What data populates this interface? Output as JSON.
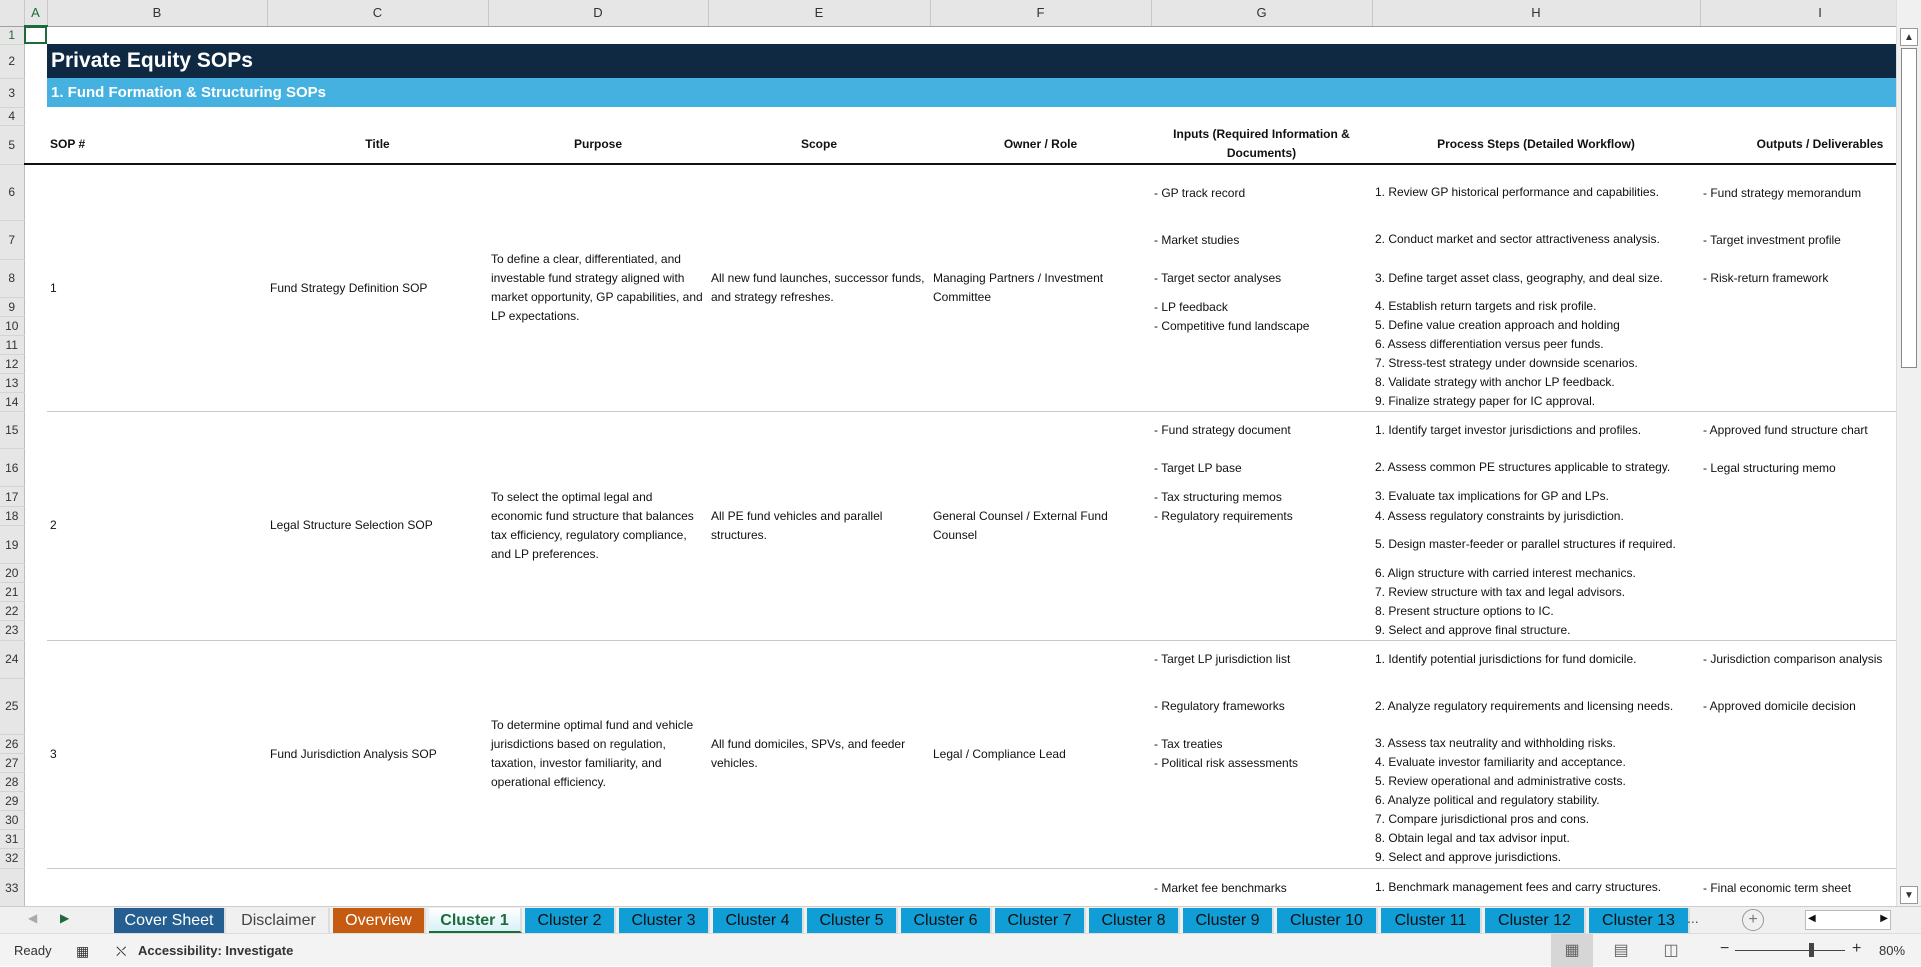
{
  "sheet": {
    "columns": [
      "A",
      "B",
      "C",
      "D",
      "E",
      "F",
      "G",
      "H",
      "I"
    ],
    "selected_cell": "A1",
    "title": "Private Equity SOPs",
    "section": "1. Fund Formation & Structuring SOPs",
    "headers": [
      "SOP #",
      "Title",
      "Purpose",
      "Scope",
      "Owner / Role",
      "Inputs (Required Information & Documents)",
      "Process Steps (Detailed Workflow)",
      "Outputs / Deliverables"
    ]
  },
  "sops": [
    {
      "number": "1",
      "title": "Fund Strategy Definition SOP",
      "purpose": "To define a clear, differentiated, and investable fund strategy aligned with market opportunity, GP capabilities, and LP expectations.",
      "scope": "All new fund launches, successor funds, and strategy refreshes.",
      "owner": "Managing Partners / Investment Committee",
      "rows": [
        {
          "input": "- GP track record",
          "step": "1. Review GP historical performance and capabilities.",
          "output": "- Fund strategy memorandum"
        },
        {
          "input": "- Market studies",
          "step": "2. Conduct market and sector attractiveness analysis.",
          "output": "- Target investment profile"
        },
        {
          "input": "- Target sector analyses",
          "step": "3. Define target asset class, geography, and deal size.",
          "output": "- Risk-return framework"
        },
        {
          "input": "- LP feedback",
          "step": "4. Establish return targets and risk profile.",
          "output": ""
        },
        {
          "input": "- Competitive fund landscape",
          "step": "5. Define value creation approach and holding",
          "output": ""
        },
        {
          "input": "",
          "step": "6. Assess differentiation versus peer funds.",
          "output": ""
        },
        {
          "input": "",
          "step": "7. Stress-test strategy under downside scenarios.",
          "output": ""
        },
        {
          "input": "",
          "step": "8. Validate strategy with anchor LP feedback.",
          "output": ""
        },
        {
          "input": "",
          "step": "9. Finalize strategy paper for IC approval.",
          "output": ""
        }
      ]
    },
    {
      "number": "2",
      "title": "Legal Structure Selection SOP",
      "purpose": "To select the optimal legal and economic fund structure that balances tax efficiency, regulatory compliance, and LP preferences.",
      "scope": "All PE fund vehicles and parallel structures.",
      "owner": "General Counsel / External Fund Counsel",
      "rows": [
        {
          "input": "- Fund strategy document",
          "step": "1. Identify target investor jurisdictions and profiles.",
          "output": "- Approved fund structure chart"
        },
        {
          "input": "- Target LP base",
          "step": "2. Assess common PE structures applicable to strategy.",
          "output": "- Legal structuring memo"
        },
        {
          "input": "- Tax structuring memos",
          "step": "3. Evaluate tax implications for GP and LPs.",
          "output": ""
        },
        {
          "input": "- Regulatory requirements",
          "step": "4. Assess regulatory constraints by jurisdiction.",
          "output": ""
        },
        {
          "input": "",
          "step": "5. Design master-feeder or parallel structures if required.",
          "output": ""
        },
        {
          "input": "",
          "step": "6. Align structure with carried interest mechanics.",
          "output": ""
        },
        {
          "input": "",
          "step": "7. Review structure with tax and legal advisors.",
          "output": ""
        },
        {
          "input": "",
          "step": "8. Present structure options to IC.",
          "output": ""
        },
        {
          "input": "",
          "step": "9. Select and approve final structure.",
          "output": ""
        }
      ]
    },
    {
      "number": "3",
      "title": "Fund Jurisdiction Analysis SOP",
      "purpose": "To determine optimal fund and vehicle jurisdictions based on regulation, taxation, investor familiarity, and operational efficiency.",
      "scope": "All fund domiciles, SPVs, and feeder vehicles.",
      "owner": "Legal / Compliance Lead",
      "rows": [
        {
          "input": "- Target LP jurisdiction list",
          "step": "1. Identify potential jurisdictions for fund domicile.",
          "output": "- Jurisdiction comparison analysis"
        },
        {
          "input": "- Regulatory frameworks",
          "step": "2. Analyze regulatory requirements and licensing needs.",
          "output": "- Approved domicile decision"
        },
        {
          "input": "- Tax treaties",
          "step": "3. Assess tax neutrality and withholding risks.",
          "output": ""
        },
        {
          "input": "- Political risk assessments",
          "step": "4. Evaluate investor familiarity and acceptance.",
          "output": ""
        },
        {
          "input": "",
          "step": "5. Review operational and administrative costs.",
          "output": ""
        },
        {
          "input": "",
          "step": "6. Analyze political and regulatory stability.",
          "output": ""
        },
        {
          "input": "",
          "step": "7. Compare jurisdictional pros and cons.",
          "output": ""
        },
        {
          "input": "",
          "step": "8. Obtain legal and tax advisor input.",
          "output": ""
        },
        {
          "input": "",
          "step": "9. Select and approve jurisdictions.",
          "output": ""
        }
      ]
    },
    {
      "number": "",
      "title": "",
      "purpose": "",
      "scope": "",
      "owner": "",
      "rows": [
        {
          "input": "- Market fee benchmarks",
          "step": "1. Benchmark management fees and carry structures.",
          "output": "- Final economic term sheet"
        }
      ]
    }
  ],
  "tabs": [
    {
      "label": "Cover Sheet",
      "color": "#255e91"
    },
    {
      "label": "Disclaimer",
      "color": "#f0f0f0"
    },
    {
      "label": "Overview",
      "color": "#c55a11"
    },
    {
      "label": "Cluster 1",
      "color": "#119dd5",
      "active": true
    },
    {
      "label": "Cluster 2",
      "color": "#119dd5"
    },
    {
      "label": "Cluster 3",
      "color": "#119dd5"
    },
    {
      "label": "Cluster 4",
      "color": "#119dd5"
    },
    {
      "label": "Cluster 5",
      "color": "#119dd5"
    },
    {
      "label": "Cluster 6",
      "color": "#119dd5"
    },
    {
      "label": "Cluster 7",
      "color": "#119dd5"
    },
    {
      "label": "Cluster 8",
      "color": "#119dd5"
    },
    {
      "label": "Cluster 9",
      "color": "#119dd5"
    },
    {
      "label": "Cluster 10",
      "color": "#119dd5"
    },
    {
      "label": "Cluster 11",
      "color": "#119dd5"
    },
    {
      "label": "Cluster 12",
      "color": "#119dd5"
    },
    {
      "label": "Cluster 13",
      "color": "#119dd5"
    }
  ],
  "tabs_more": "...",
  "status": {
    "ready": "Ready",
    "accessibility": "Accessibility: Investigate",
    "zoom": "80%",
    "zoom_level_percent": 80
  }
}
